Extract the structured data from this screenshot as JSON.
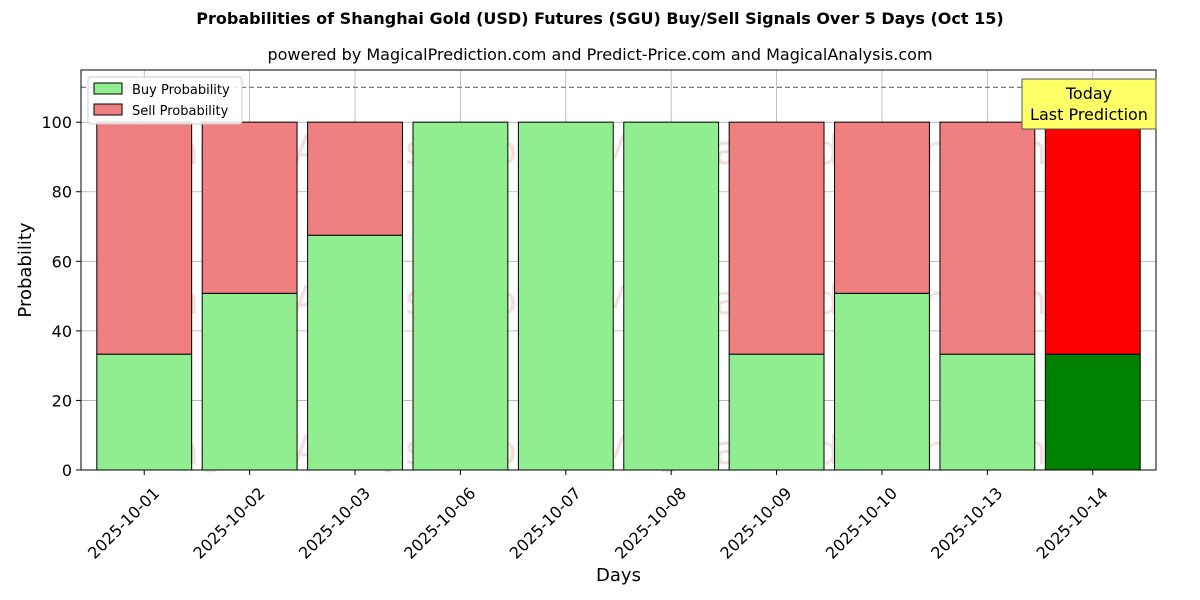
{
  "chart_data": {
    "type": "bar",
    "title": "Probabilities of Shanghai Gold (USD) Futures (SGU) Buy/Sell Signals Over 5 Days (Oct 15)",
    "subtitle": "powered by MagicalPrediction.com and Predict-Price.com and MagicalAnalysis.com",
    "xlabel": "Days",
    "ylabel": "Probability",
    "ylim": [
      0,
      115
    ],
    "yticks": [
      0,
      20,
      40,
      60,
      80,
      100
    ],
    "grid": true,
    "legend_placement": "top-left",
    "stacked": true,
    "categories": [
      "2025-10-01",
      "2025-10-02",
      "2025-10-03",
      "2025-10-06",
      "2025-10-07",
      "2025-10-08",
      "2025-10-09",
      "2025-10-10",
      "2025-10-13",
      "2025-10-14"
    ],
    "series": [
      {
        "name": "Buy Probability",
        "color": "#90ee90",
        "values": [
          33.3,
          50.8,
          67.5,
          100,
          100,
          100,
          33.3,
          50.8,
          33.3,
          33.3
        ]
      },
      {
        "name": "Sell Probability",
        "color": "#f08080",
        "values": [
          66.7,
          49.2,
          32.5,
          0,
          0,
          0,
          66.7,
          49.2,
          66.7,
          66.7
        ]
      }
    ],
    "highlight": {
      "index": 9,
      "buy_color": "#008000",
      "sell_color": "#ff0000"
    },
    "reference_line": {
      "y": 110,
      "style": "dashed",
      "color": "#808080"
    },
    "annotation": {
      "lines": [
        "Today",
        "Last Prediction"
      ],
      "background": "#ffff66"
    },
    "watermarks": [
      "MagicalAnalysis.com",
      "MagicalPrediction.com"
    ]
  }
}
